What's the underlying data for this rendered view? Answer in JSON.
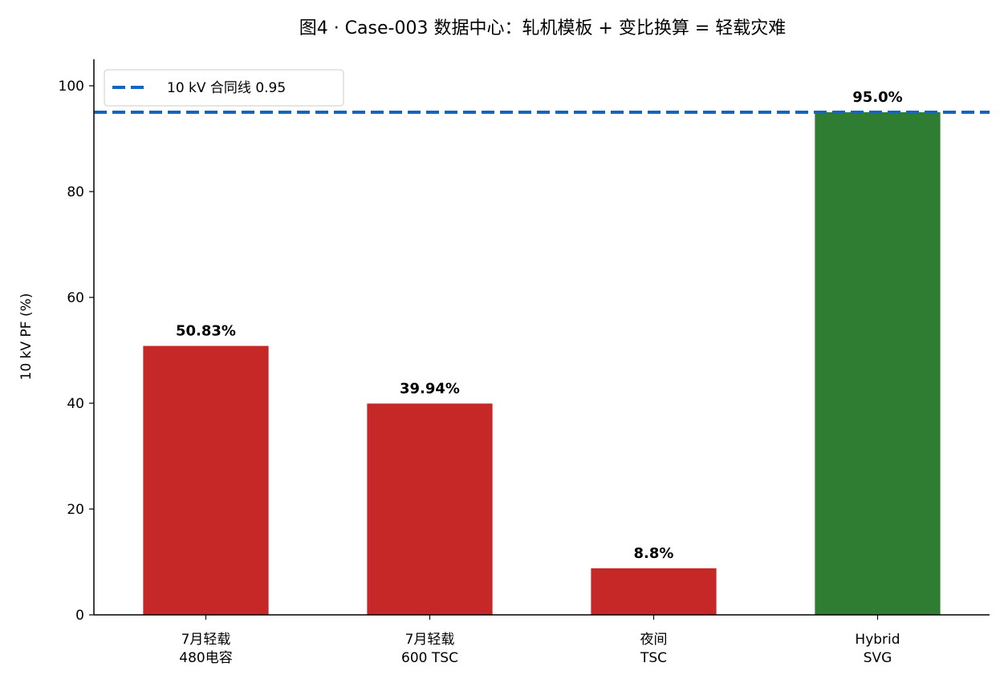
{
  "chart_data": {
    "type": "bar",
    "title": "图4 · Case-003 数据中心：轧机模板 + 变比换算 = 轻载灾难",
    "xlabel": "",
    "ylabel": "10 kV PF (%)",
    "ylim": [
      0,
      105
    ],
    "yticks": [
      "0",
      "20",
      "40",
      "60",
      "80",
      "100"
    ],
    "categories": [
      [
        "7月轻载",
        "480电容"
      ],
      [
        "7月轻载",
        "600 TSC"
      ],
      [
        "夜间",
        "TSC"
      ],
      [
        "Hybrid",
        "SVG"
      ]
    ],
    "values": [
      50.83,
      39.94,
      8.8,
      95.0
    ],
    "value_labels": [
      "50.83%",
      "39.94%",
      "8.8%",
      "95.0%"
    ],
    "bar_colors": [
      "#c62828",
      "#c62828",
      "#c62828",
      "#2e7d32"
    ],
    "reference_line": {
      "value": 95,
      "label": "10 kV 合同线 0.95",
      "color": "#1565c0",
      "style": "dashed"
    },
    "legend_position": "top-left",
    "grid": false
  }
}
